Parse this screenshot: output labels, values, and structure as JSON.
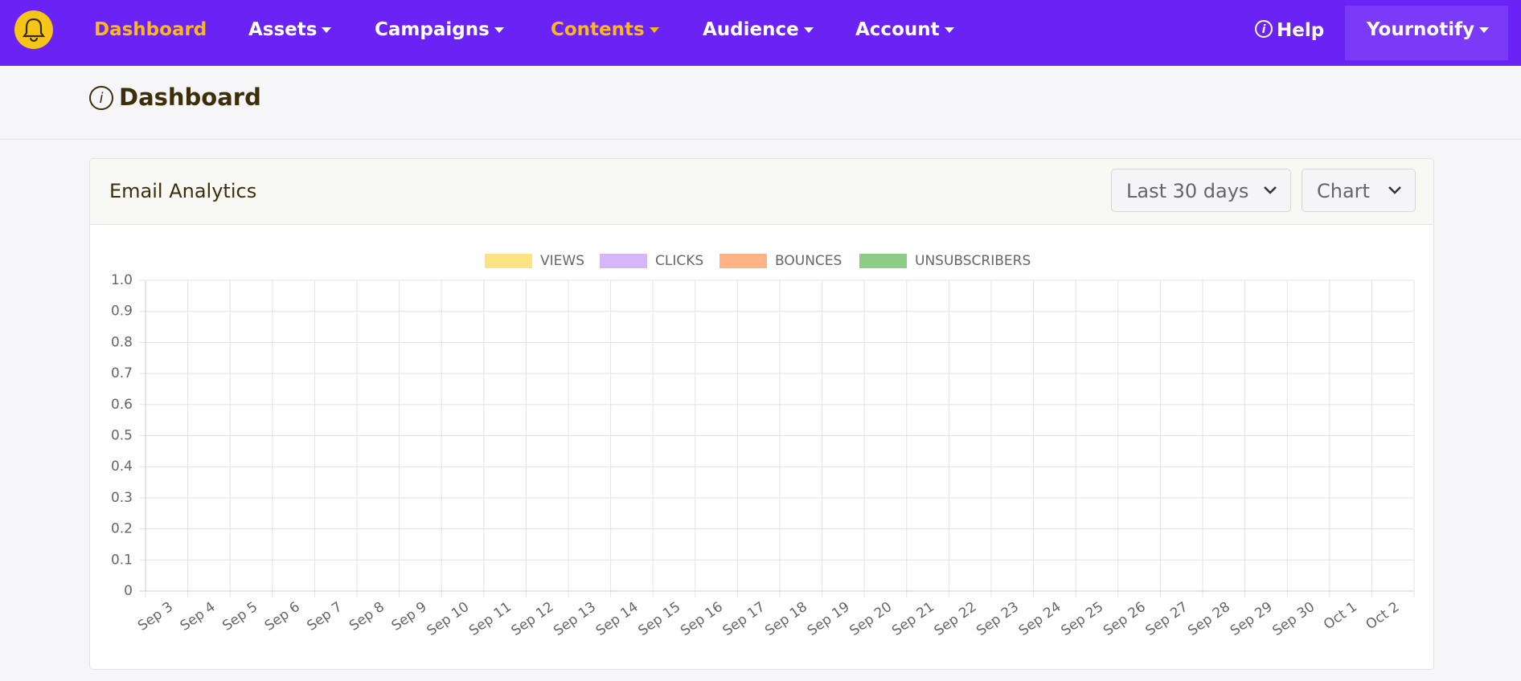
{
  "nav": {
    "items": [
      "Dashboard",
      "Assets",
      "Campaigns",
      "Contents",
      "Audience",
      "Account"
    ],
    "help": "Help",
    "account": "Yournotify"
  },
  "page": {
    "title": "Dashboard"
  },
  "card": {
    "title": "Email Analytics",
    "range": "Last 30 days",
    "view": "Chart"
  },
  "chart_data": {
    "type": "line",
    "categories": [
      "Sep 3",
      "Sep 4",
      "Sep 5",
      "Sep 6",
      "Sep 7",
      "Sep 8",
      "Sep 9",
      "Sep 10",
      "Sep 11",
      "Sep 12",
      "Sep 13",
      "Sep 14",
      "Sep 15",
      "Sep 16",
      "Sep 17",
      "Sep 18",
      "Sep 19",
      "Sep 20",
      "Sep 21",
      "Sep 22",
      "Sep 23",
      "Sep 24",
      "Sep 25",
      "Sep 26",
      "Sep 27",
      "Sep 28",
      "Sep 29",
      "Sep 30",
      "Oct 1",
      "Oct 2"
    ],
    "series": [
      {
        "name": "VIEWS",
        "color": "#fee382",
        "values": [
          null,
          null,
          null,
          null,
          null,
          null,
          null,
          null,
          null,
          null,
          null,
          null,
          null,
          null,
          null,
          null,
          null,
          null,
          null,
          null,
          null,
          null,
          null,
          null,
          null,
          null,
          null,
          null,
          null,
          null
        ]
      },
      {
        "name": "CLICKS",
        "color": "#d4b6f9",
        "values": [
          null,
          null,
          null,
          null,
          null,
          null,
          null,
          null,
          null,
          null,
          null,
          null,
          null,
          null,
          null,
          null,
          null,
          null,
          null,
          null,
          null,
          null,
          null,
          null,
          null,
          null,
          null,
          null,
          null,
          null
        ]
      },
      {
        "name": "BOUNCES",
        "color": "#ffb385",
        "values": [
          null,
          null,
          null,
          null,
          null,
          null,
          null,
          null,
          null,
          null,
          null,
          null,
          null,
          null,
          null,
          null,
          null,
          null,
          null,
          null,
          null,
          null,
          null,
          null,
          null,
          null,
          null,
          null,
          null,
          null
        ]
      },
      {
        "name": "UNSUBSCRIBERS",
        "color": "#8dcc84",
        "values": [
          null,
          null,
          null,
          null,
          null,
          null,
          null,
          null,
          null,
          null,
          null,
          null,
          null,
          null,
          null,
          null,
          null,
          null,
          null,
          null,
          null,
          null,
          null,
          null,
          null,
          null,
          null,
          null,
          null,
          null
        ]
      }
    ],
    "ylim": [
      0,
      1
    ],
    "yticks": [
      0,
      0.1,
      0.2,
      0.3,
      0.4,
      0.5,
      0.6,
      0.7,
      0.8,
      0.9,
      {
        "value": 1,
        "label": "1.0"
      }
    ],
    "grid": true,
    "legend": "top"
  }
}
